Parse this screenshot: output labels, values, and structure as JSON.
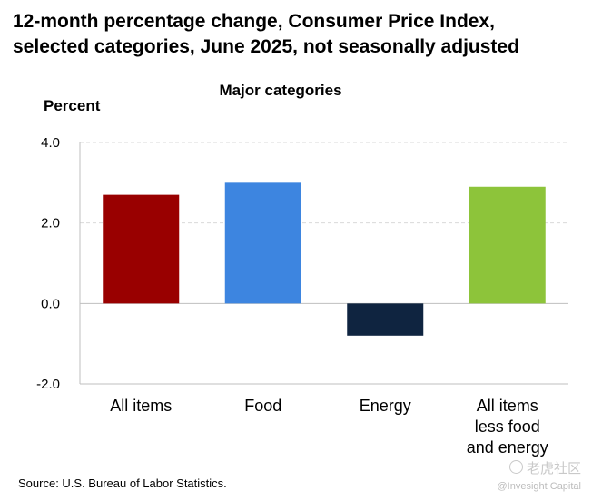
{
  "chart_data": {
    "type": "bar",
    "title_lines": [
      "12-month percentage change, Consumer Price Index,",
      "selected categories, June 2025, not seasonally adjusted"
    ],
    "subtitle": "Major categories",
    "ylabel": "Percent",
    "xlabel": "",
    "categories": [
      [
        "All items"
      ],
      [
        "Food"
      ],
      [
        "Energy"
      ],
      [
        "All items",
        "less food",
        "and energy"
      ]
    ],
    "values": [
      2.7,
      3.0,
      -0.8,
      2.9
    ],
    "colors": [
      "#990000",
      "#3d85e0",
      "#0f2440",
      "#8dc43a"
    ],
    "ylim": [
      -2.0,
      4.0
    ],
    "yticks": [
      -2.0,
      0.0,
      2.0,
      4.0
    ],
    "ytick_labels": [
      "-2.0",
      "0.0",
      "2.0",
      "4.0"
    ],
    "grid": true,
    "source": "Source: U.S. Bureau of Labor Statistics."
  },
  "watermark": {
    "line1": "老虎社区",
    "line2": "@Invesight Capital"
  }
}
